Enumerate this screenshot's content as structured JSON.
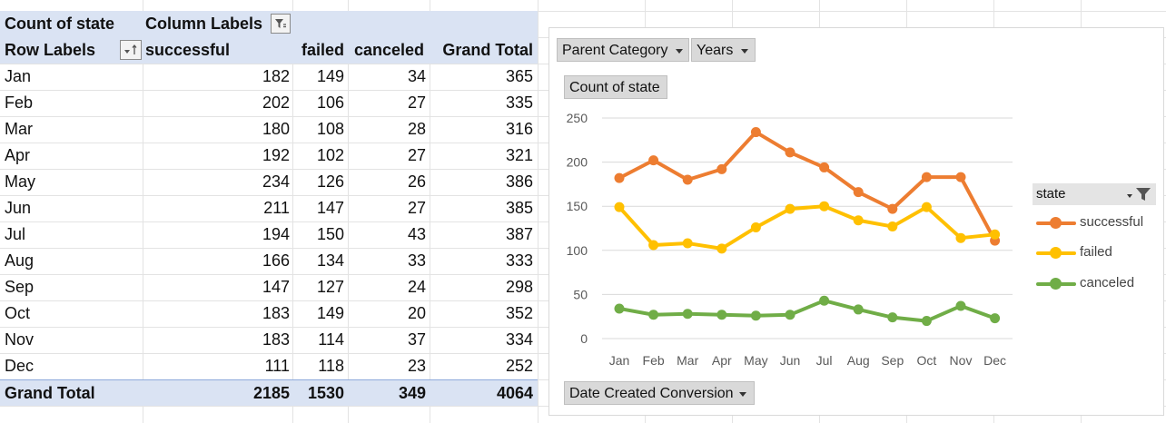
{
  "pivot": {
    "corner_label": "Count of state",
    "column_labels": "Column Labels",
    "row_labels": "Row Labels",
    "columns": [
      "successful",
      "failed",
      "canceled",
      "Grand Total"
    ],
    "rows": [
      {
        "label": "Jan",
        "values": [
          "182",
          "149",
          "34",
          "365"
        ]
      },
      {
        "label": "Feb",
        "values": [
          "202",
          "106",
          "27",
          "335"
        ]
      },
      {
        "label": "Mar",
        "values": [
          "180",
          "108",
          "28",
          "316"
        ]
      },
      {
        "label": "Apr",
        "values": [
          "192",
          "102",
          "27",
          "321"
        ]
      },
      {
        "label": "May",
        "values": [
          "234",
          "126",
          "26",
          "386"
        ]
      },
      {
        "label": "Jun",
        "values": [
          "211",
          "147",
          "27",
          "385"
        ]
      },
      {
        "label": "Jul",
        "values": [
          "194",
          "150",
          "43",
          "387"
        ]
      },
      {
        "label": "Aug",
        "values": [
          "166",
          "134",
          "33",
          "333"
        ]
      },
      {
        "label": "Sep",
        "values": [
          "147",
          "127",
          "24",
          "298"
        ]
      },
      {
        "label": "Oct",
        "values": [
          "183",
          "149",
          "20",
          "352"
        ]
      },
      {
        "label": "Nov",
        "values": [
          "183",
          "114",
          "37",
          "334"
        ]
      },
      {
        "label": "Dec",
        "values": [
          "111",
          "118",
          "23",
          "252"
        ]
      }
    ],
    "total": {
      "label": "Grand Total",
      "values": [
        "2185",
        "1530",
        "349",
        "4064"
      ]
    }
  },
  "chart_buttons": {
    "parent_category": "Parent Category",
    "years": "Years",
    "count_of_state": "Count of state",
    "date_created": "Date Created Conversion",
    "legend_title": "state"
  },
  "icons": {
    "column_filter": "filter-funnel-icon",
    "row_sort": "sort-dropdown-icon",
    "legend_filter": "filter-dropdown-icon"
  },
  "chart_data": {
    "type": "line",
    "title": "",
    "xlabel": "",
    "ylabel": "",
    "categories": [
      "Jan",
      "Feb",
      "Mar",
      "Apr",
      "May",
      "Jun",
      "Jul",
      "Aug",
      "Sep",
      "Oct",
      "Nov",
      "Dec"
    ],
    "ylim": [
      0,
      250
    ],
    "yticks": [
      "0",
      "50",
      "100",
      "150",
      "200",
      "250"
    ],
    "grid": true,
    "legend": "right",
    "series": [
      {
        "name": "successful",
        "color": "#ed7d31",
        "values": [
          182,
          202,
          180,
          192,
          234,
          211,
          194,
          166,
          147,
          183,
          183,
          111
        ]
      },
      {
        "name": "failed",
        "color": "#ffc000",
        "values": [
          149,
          106,
          108,
          102,
          126,
          147,
          150,
          134,
          127,
          149,
          114,
          118
        ]
      },
      {
        "name": "canceled",
        "color": "#70ad47",
        "values": [
          34,
          27,
          28,
          27,
          26,
          27,
          43,
          33,
          24,
          20,
          37,
          23
        ]
      }
    ]
  }
}
